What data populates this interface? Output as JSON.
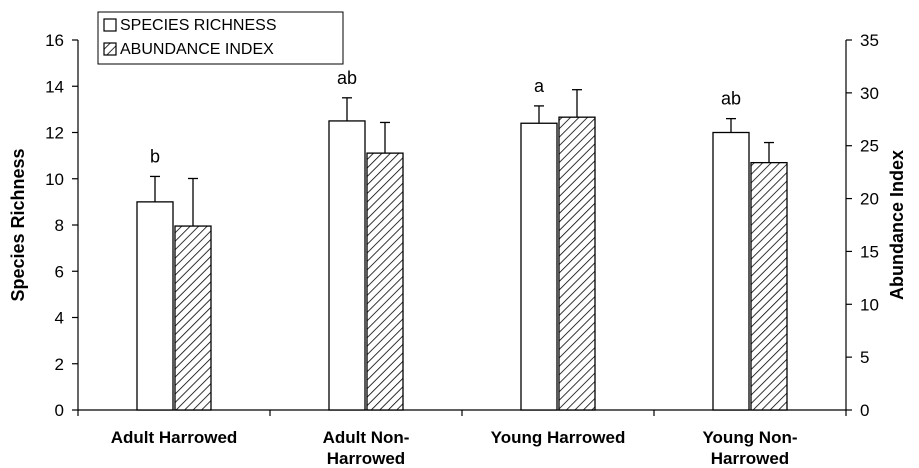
{
  "chart_data": {
    "type": "bar",
    "categories": [
      "Adult Harrowed",
      "Adult Non-Harrowed",
      "Young Harrowed",
      "Young Non-Harrowed"
    ],
    "category_lines": [
      [
        "Adult Harrowed"
      ],
      [
        "Adult Non-",
        "Harrowed"
      ],
      [
        "Young Harrowed"
      ],
      [
        "Young Non-",
        "Harrowed"
      ]
    ],
    "ylabel": "Species Richness",
    "y2label": "Abundance Index",
    "ylim": [
      0,
      16
    ],
    "y2lim": [
      0,
      35
    ],
    "yticks": [
      0,
      2,
      4,
      6,
      8,
      10,
      12,
      14,
      16
    ],
    "y2ticks": [
      0,
      5,
      10,
      15,
      20,
      25,
      30,
      35
    ],
    "legend_position": "top-left",
    "series": [
      {
        "name": "SPECIES RICHNESS",
        "axis": "left",
        "fill": "white",
        "values": [
          9.0,
          12.5,
          12.4,
          12.0
        ],
        "error": [
          1.1,
          1.0,
          0.75,
          0.6
        ],
        "letters": [
          "b",
          "ab",
          "a",
          "ab"
        ]
      },
      {
        "name": "ABUNDANCE INDEX",
        "axis": "right",
        "fill": "hatched",
        "values": [
          17.4,
          24.3,
          27.7,
          23.4
        ],
        "error": [
          4.5,
          2.9,
          2.6,
          1.9
        ]
      }
    ]
  }
}
